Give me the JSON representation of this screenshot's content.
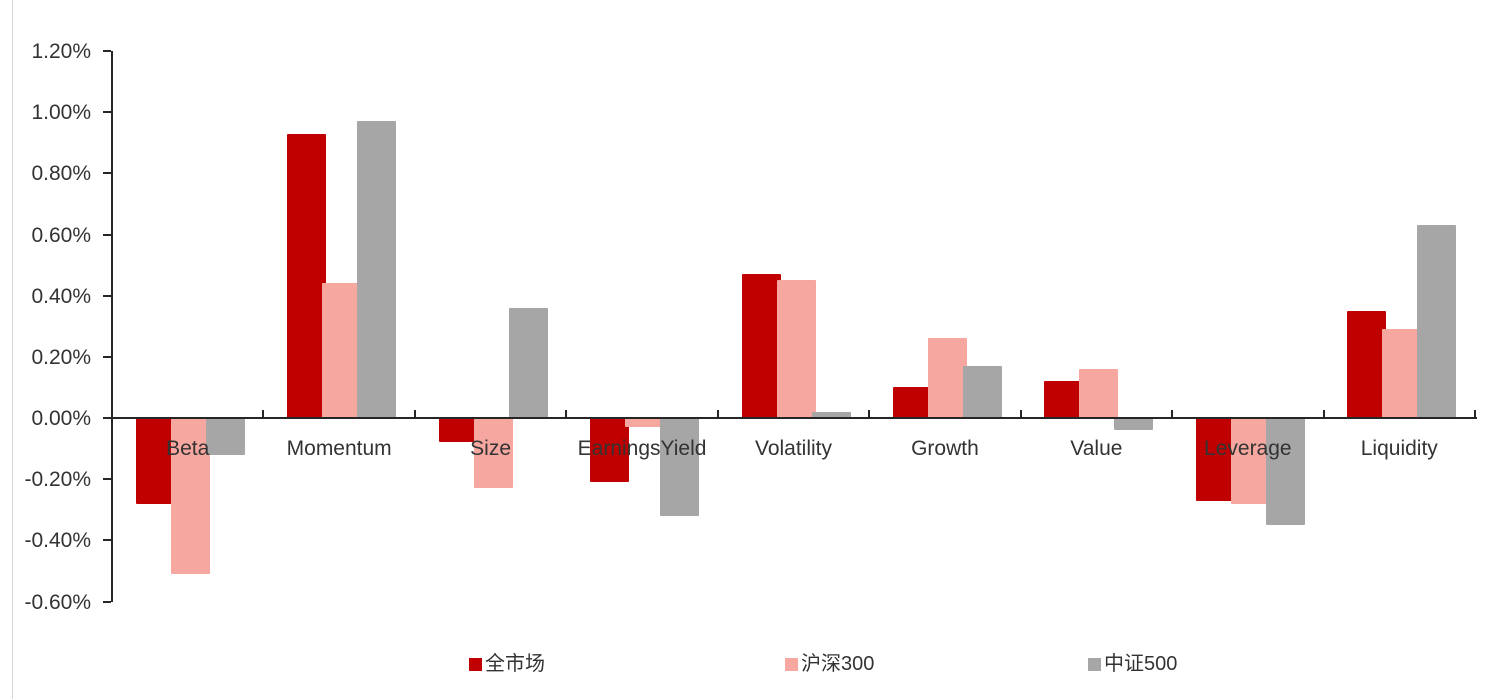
{
  "chart_data": {
    "type": "bar",
    "title": "",
    "xlabel": "",
    "ylabel": "",
    "unit": "%",
    "grid": false,
    "legend_position": "bottom",
    "categories": [
      "Beta",
      "Momentum",
      "Size",
      "EarningsYield",
      "Volatility",
      "Growth",
      "Value",
      "Leverage",
      "Liquidity"
    ],
    "series": [
      {
        "name": "全市场",
        "color": "#C00000",
        "values": [
          -0.28,
          0.93,
          -0.08,
          -0.21,
          0.47,
          0.1,
          0.12,
          -0.27,
          0.35
        ]
      },
      {
        "name": "沪深300",
        "color": "#F5A7A0",
        "values": [
          -0.51,
          0.44,
          -0.23,
          -0.03,
          0.45,
          0.26,
          0.16,
          -0.28,
          0.29
        ]
      },
      {
        "name": "中证500",
        "color": "#A6A6A6",
        "values": [
          -0.12,
          0.97,
          0.36,
          -0.32,
          0.02,
          0.17,
          -0.04,
          -0.35,
          0.63
        ]
      }
    ],
    "y_axis": {
      "min": -0.6,
      "max": 1.2,
      "step": 0.2,
      "tick_labels": [
        "1.20%",
        "1.00%",
        "0.80%",
        "0.60%",
        "0.40%",
        "0.20%",
        "0.00%",
        "-0.20%",
        "-0.40%",
        "-0.60%"
      ]
    }
  },
  "colors": {
    "axis": "#262626",
    "text": "#333333",
    "background": "#ffffff",
    "left_border": "#d9d9d9"
  }
}
